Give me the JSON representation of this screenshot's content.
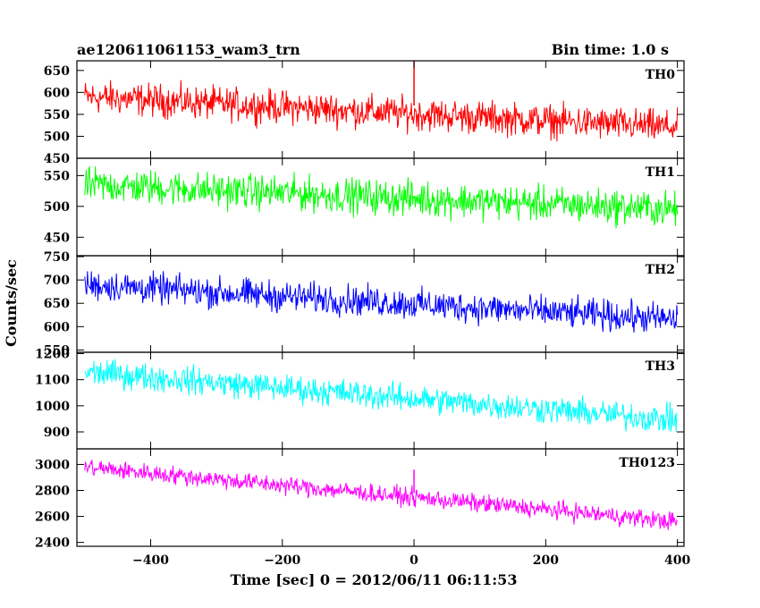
{
  "header": {
    "title": "ae120611061153_wam3_trn",
    "bin_time": "Bin time: 1.0 s"
  },
  "chart_data": {
    "type": "line",
    "xlabel": "Time [sec] 0 = 2012/06/11 06:11:53",
    "ylabel": "Counts/sec",
    "xlim": [
      -512,
      410
    ],
    "x_ticks": [
      -400,
      -200,
      0,
      200,
      400
    ],
    "x_tick_labels": [
      "−400",
      "−200",
      "0",
      "200",
      "400"
    ],
    "x_range": [
      -500,
      400
    ],
    "panels": [
      {
        "name": "TH0",
        "color": "#ff0000",
        "ylim": [
          450,
          672
        ],
        "yticks": [
          450,
          500,
          550,
          600,
          650
        ],
        "y_tick_labels": [
          "450",
          "500",
          "550",
          "600",
          "650"
        ],
        "trend_start": 590,
        "trend_end": 520,
        "noise": 32,
        "spikes": [
          [
            0,
            690
          ]
        ]
      },
      {
        "name": "TH1",
        "color": "#00ff00",
        "ylim": [
          420,
          578
        ],
        "yticks": [
          450,
          500,
          550
        ],
        "y_tick_labels": [
          "450",
          "500",
          "550"
        ],
        "trend_start": 535,
        "trend_end": 495,
        "noise": 24,
        "spikes": []
      },
      {
        "name": "TH2",
        "color": "#0000ff",
        "ylim": [
          545,
          752
        ],
        "yticks": [
          550,
          600,
          650,
          700,
          750
        ],
        "y_tick_labels": [
          "550",
          "600",
          "650",
          "700",
          "750"
        ],
        "trend_start": 690,
        "trend_end": 615,
        "noise": 28,
        "spikes": []
      },
      {
        "name": "TH3",
        "color": "#00ffff",
        "ylim": [
          835,
          1205
        ],
        "yticks": [
          900,
          1000,
          1100,
          1200
        ],
        "y_tick_labels": [
          "900",
          "1000",
          "1100",
          "1200"
        ],
        "trend_start": 1130,
        "trend_end": 945,
        "noise": 45,
        "spikes": []
      },
      {
        "name": "TH0123",
        "color": "#ff00ff",
        "ylim": [
          2370,
          3120
        ],
        "yticks": [
          2400,
          2600,
          2800,
          3000
        ],
        "y_tick_labels": [
          "2400",
          "2600",
          "2800",
          "3000"
        ],
        "trend_start": 2980,
        "trend_end": 2560,
        "noise": 60,
        "spikes": [
          [
            0,
            2780
          ]
        ]
      }
    ]
  }
}
